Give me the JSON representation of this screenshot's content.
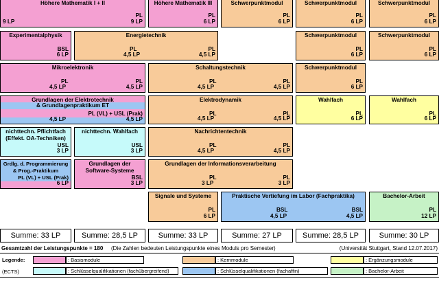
{
  "colors": {
    "basis": "#F4A0D2",
    "kern": "#F8CB9A",
    "ergaenzung": "#FFFFA0",
    "sq_fachuebergreifend": "#C6FAFA",
    "sq_fachaffin": "#9CC6F2",
    "bachelor": "#C6F2C6",
    "band_blue": "#9CC6F2"
  },
  "modules": [
    {
      "title": "Höhere Mathematik I + II",
      "lines": [
        "PL"
      ],
      "lp": [
        "9 LP",
        "9 LP"
      ]
    },
    {
      "title": "Höhere Mathematik III",
      "lines": [
        "PL"
      ],
      "lp": [
        "6 LP"
      ]
    },
    {
      "title": "Schwerpunktmodul",
      "lines": [
        "PL"
      ],
      "lp": [
        "6 LP"
      ]
    },
    {
      "title": "Schwerpunktmodul",
      "lines": [
        "PL"
      ],
      "lp": [
        "6 LP"
      ]
    },
    {
      "title": "Schwerpunktmodul",
      "lines": [
        "PL"
      ],
      "lp": [
        "6 LP"
      ]
    },
    {
      "title": "Experimentalphysik",
      "lines": [
        "BSL"
      ],
      "lp": [
        "6 LP"
      ]
    },
    {
      "title": "Energietechnik",
      "lines": [
        "PL",
        "PL"
      ],
      "lp": [
        "4,5 LP",
        "4,5 LP"
      ]
    },
    {
      "title": "Schwerpunktmodul",
      "lines": [
        "PL"
      ],
      "lp": [
        "6 LP"
      ]
    },
    {
      "title": "Schwerpunktmodul",
      "lines": [
        "PL"
      ],
      "lp": [
        "6 LP"
      ]
    },
    {
      "title": "Mikroelektronik",
      "lines": [
        "PL",
        "PL"
      ],
      "lp": [
        "4,5 LP",
        "4,5 LP"
      ]
    },
    {
      "title": "Schaltungstechnik",
      "lines": [
        "PL",
        "PL"
      ],
      "lp": [
        "4,5 LP",
        "4,5 LP"
      ]
    },
    {
      "title": "Schwerpunktmodul",
      "lines": [
        "PL"
      ],
      "lp": [
        "6 LP"
      ]
    },
    {
      "title": "Grundlagen der Elektrotechnik",
      "band": "& Grundlagenpraktikum ET",
      "lines": [
        "PL (VL) + USL (Prak)"
      ],
      "lp": [
        "4,5 LP",
        "4,5 LP"
      ]
    },
    {
      "title": "Elektrodynamik",
      "lines": [
        "PL",
        "PL"
      ],
      "lp": [
        "4,5 LP",
        "4,5 LP"
      ]
    },
    {
      "title": "Wahlfach",
      "lines": [
        "PL"
      ],
      "lp": [
        "6 LP"
      ]
    },
    {
      "title": "Wahlfach",
      "lines": [
        "PL"
      ],
      "lp": [
        "6 LP"
      ]
    },
    {
      "title": "nichttechn. Pflichtfach\n(Effekt. OA-Techniken)",
      "lines": [
        "USL"
      ],
      "lp": [
        "3 LP"
      ]
    },
    {
      "title": "nichttechn. Wahlfach",
      "lines": [
        "USL"
      ],
      "lp": [
        "3 LP"
      ]
    },
    {
      "title": "Nachrichtentechnik",
      "lines": [
        "PL",
        "PL"
      ],
      "lp": [
        "4,5 LP",
        "4,5 LP"
      ]
    },
    {
      "title": "Grdlg. d. Programmierung\n& Prog.-Praktikum",
      "lines": [
        "PL (VL) + USL (Prak)"
      ],
      "lp": [
        "6 LP"
      ]
    },
    {
      "title": "Grundlagen der\nSoftware-Systeme",
      "lines": [
        "BSL"
      ],
      "lp": [
        "3 LP"
      ]
    },
    {
      "title": "Grundlagen der Informationsverarbeitung",
      "lines": [
        "PL",
        "PL"
      ],
      "lp": [
        "3 LP",
        "3 LP"
      ]
    },
    {
      "title": "Signale und Systeme",
      "lines": [
        "PL"
      ],
      "lp": [
        "6 LP"
      ]
    },
    {
      "title": "Praktische Vertiefung im Labor (Fachpraktika)",
      "lines": [
        "BSL",
        "BSL"
      ],
      "lp": [
        "4,5 LP",
        "4,5 LP"
      ]
    },
    {
      "title": "Bachelor-Arbeit",
      "lines": [
        "PL"
      ],
      "lp": [
        "12 LP"
      ]
    }
  ],
  "sums": [
    "Summe: 33 LP",
    "Summe: 28,5 LP",
    "Summe: 33 LP",
    "Summe: 27 LP",
    "Summe: 28,5 LP",
    "Summe: 30 LP"
  ],
  "footer": {
    "total_bold": "Gesamtzahl der Leistungspunkte = 180",
    "total_note": "(Die Zahlen bedeuten Leistungspunkte eines Moduls pro Semester)",
    "source": "(Universität Stuttgart, Stand 12.07.2017)"
  },
  "legend": {
    "label": "Legende:",
    "ects": "(ECTS)",
    "items": [
      ":  Basismodule",
      ":  Kernmodule",
      ":  Ergänzungsmodule",
      ":  Schlüsselqualifikationen (fachübergreifend)",
      ":  Schlüsselqualifikationen (fachaffin)",
      ":  Bachelor-Arbeit"
    ]
  }
}
